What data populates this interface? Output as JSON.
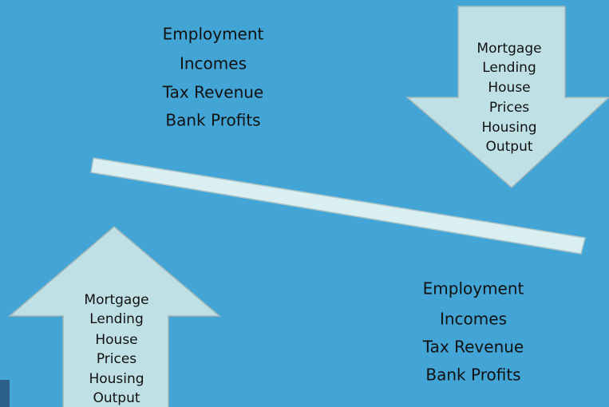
{
  "top_left_labels": [
    "Employment",
    "Incomes",
    "Tax Revenue",
    "Bank Profits"
  ],
  "down_arrow_labels": [
    "Mortgage",
    "Lending",
    "House",
    "Prices",
    "Housing",
    "Output"
  ],
  "up_arrow_labels": [
    "Mortgage",
    "Lending",
    "House",
    "Prices",
    "Housing",
    "Output"
  ],
  "bottom_right_labels": [
    "Employment",
    "Incomes",
    "Tax Revenue",
    "Bank Profits"
  ]
}
